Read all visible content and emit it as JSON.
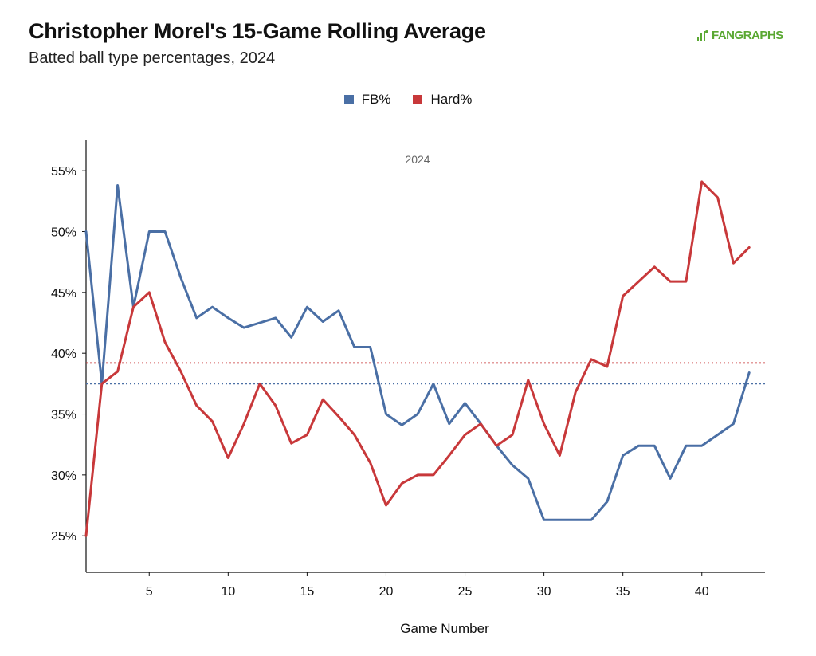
{
  "header": {
    "title": "Christopher Morel's 15-Game Rolling Average",
    "subtitle": "Batted ball type percentages, 2024",
    "logo_text": "FANGRAPHS"
  },
  "colors": {
    "fb": "#4a6fa5",
    "hard": "#c8383a",
    "logo": "#5aa832"
  },
  "chart_data": {
    "type": "line",
    "xlabel": "Game Number",
    "ylabel": "",
    "xlim": [
      1,
      44
    ],
    "ylim": [
      22,
      57.5
    ],
    "x_ticks": [
      5,
      10,
      15,
      20,
      25,
      30,
      35,
      40
    ],
    "y_ticks": [
      25,
      30,
      35,
      40,
      45,
      50,
      55
    ],
    "y_tick_labels": [
      "25%",
      "30%",
      "35%",
      "40%",
      "45%",
      "50%",
      "55%"
    ],
    "annotation": "2024",
    "legend_position": "top-center",
    "grid": false,
    "x": [
      1,
      2,
      3,
      4,
      5,
      6,
      7,
      8,
      9,
      10,
      11,
      12,
      13,
      14,
      15,
      16,
      17,
      18,
      19,
      20,
      21,
      22,
      23,
      24,
      25,
      26,
      27,
      28,
      29,
      30,
      31,
      32,
      33,
      34,
      35,
      36,
      37,
      38,
      39,
      40,
      41,
      42,
      43
    ],
    "series": [
      {
        "name": "FB%",
        "color": "#4a6fa5",
        "values": [
          50.0,
          37.5,
          53.8,
          43.8,
          50.0,
          50.0,
          46.2,
          42.9,
          43.8,
          42.9,
          42.1,
          42.5,
          42.9,
          41.3,
          43.8,
          42.6,
          43.5,
          40.5,
          40.5,
          35.0,
          34.1,
          35.0,
          37.5,
          34.2,
          35.9,
          34.2,
          32.4,
          30.8,
          29.7,
          26.3,
          26.3,
          26.3,
          26.3,
          27.8,
          31.6,
          32.4,
          32.4,
          29.7,
          32.4,
          32.4,
          33.3,
          34.2,
          38.4
        ],
        "average": 37.5
      },
      {
        "name": "Hard%",
        "color": "#c8383a",
        "values": [
          25.0,
          37.5,
          38.5,
          43.8,
          45.0,
          40.9,
          38.5,
          35.7,
          34.4,
          31.4,
          34.2,
          37.5,
          35.7,
          32.6,
          33.3,
          36.2,
          34.8,
          33.3,
          31.0,
          27.5,
          29.3,
          30.0,
          30.0,
          31.6,
          33.3,
          34.2,
          32.4,
          33.3,
          37.8,
          34.2,
          31.6,
          36.8,
          39.5,
          38.9,
          44.7,
          45.9,
          47.1,
          45.9,
          45.9,
          54.1,
          52.8,
          47.4,
          48.7
        ],
        "average": 39.2
      }
    ]
  }
}
